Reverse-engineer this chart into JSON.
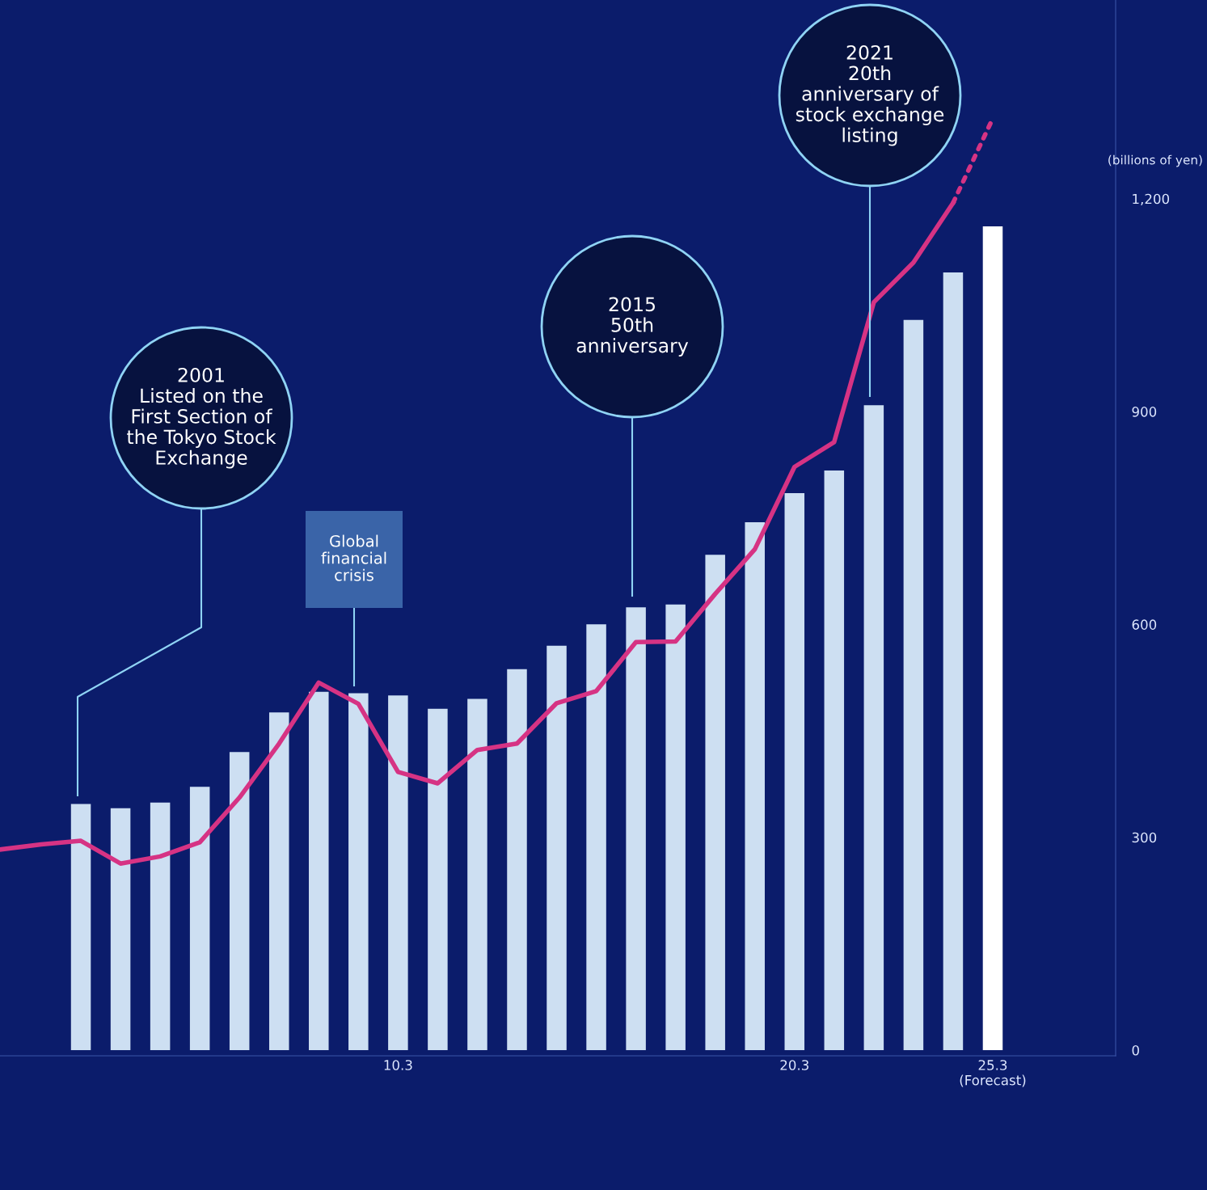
{
  "chart_data": {
    "type": "bar",
    "ylabel": "(billions of yen)",
    "categories": [
      null,
      null,
      null,
      null,
      null,
      null,
      null,
      null,
      null,
      null,
      "10.3",
      null,
      null,
      null,
      null,
      null,
      null,
      null,
      null,
      null,
      "20.3",
      null,
      null,
      null,
      null,
      "25.3\n(Forecast)"
    ],
    "series": [
      {
        "color": "#cddff2",
        "colors": [
          "#cddff2",
          "#cddff2",
          "#cddff2",
          "#cddff2",
          "#cddff2",
          "#cddff2",
          "#cddff2",
          "#cddff2",
          "#cddff2",
          "#cddff2",
          "#cddff2",
          "#cddff2",
          "#cddff2",
          "#cddff2",
          "#cddff2",
          "#cddff2",
          "#cddff2",
          "#cddff2",
          "#cddff2",
          "#cddff2",
          "#cddff2",
          "#cddff2",
          "#cddff2",
          "#cddff2",
          "#cddff2",
          "#ffffff"
        ],
        "values": [
          null,
          null,
          347,
          341,
          349,
          371,
          420,
          476,
          505,
          503,
          500,
          481,
          495,
          537,
          570,
          600,
          624,
          628,
          698,
          744,
          785,
          817,
          909,
          1029,
          1096,
          1161
        ]
      },
      {
        "type": "line",
        "color": "#d63384",
        "line_style": "solid",
        "values": [
          283,
          290,
          295,
          263,
          273,
          293,
          356,
          432,
          518,
          488,
          392,
          376,
          423,
          432,
          489,
          506,
          575,
          576,
          643,
          706,
          822,
          857,
          1054,
          1110,
          1194,
          null
        ]
      },
      {
        "type": "line",
        "color": "#d63384",
        "line_style": "dotted",
        "values": [
          null,
          null,
          null,
          null,
          null,
          null,
          null,
          null,
          null,
          null,
          null,
          null,
          null,
          null,
          null,
          null,
          null,
          null,
          null,
          null,
          null,
          null,
          null,
          null,
          1194,
          1313
        ]
      }
    ],
    "ylim": [
      -8,
      1480
    ],
    "yticks": [
      0,
      300,
      600,
      900,
      {
        "value": 1200,
        "label": "1,200"
      }
    ],
    "grid": false,
    "annotations": [
      "2001\nListed on the\nFirst Section of\nthe Tokyo Stock\nExchange",
      "Global\nfinancial\ncrisis",
      "2015\n50th\nanniversary",
      "2021\n20th\nanniversary of\nstock exchange\nlisting"
    ]
  }
}
